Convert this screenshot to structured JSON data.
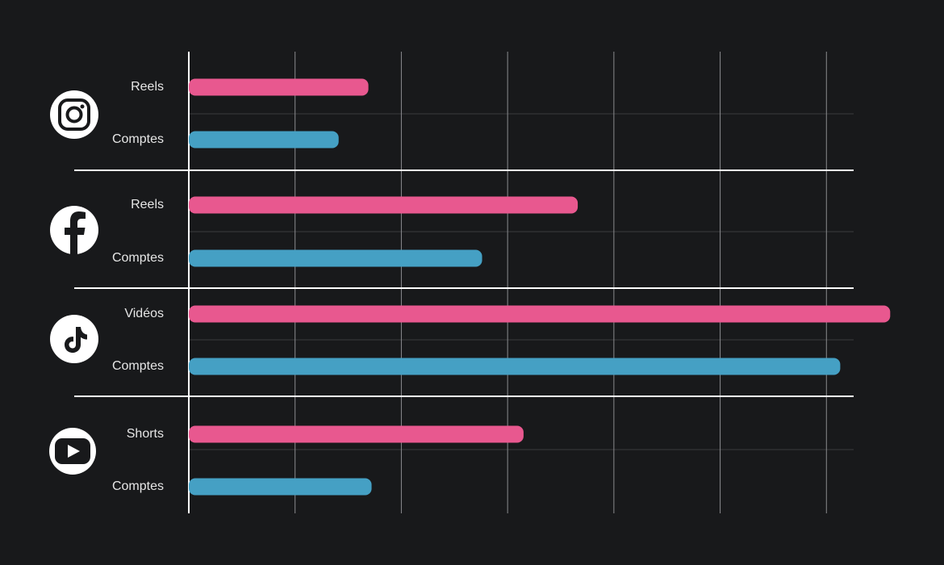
{
  "chart_data": {
    "type": "bar",
    "categories": [
      "Reels",
      "Comptes",
      "Reels",
      "Comptes",
      "Vidéos",
      "Comptes",
      "Shorts",
      "Comptes"
    ],
    "values": [
      1.69,
      1.41,
      3.66,
      2.76,
      6.6,
      6.13,
      3.15,
      1.72
    ],
    "colors": [
      "#e8588f",
      "#45a0c4",
      "#e8588f",
      "#45a0c4",
      "#e8588f",
      "#45a0c4",
      "#e8588f",
      "#45a0c4"
    ],
    "xlim": [
      0,
      7
    ],
    "xticks": [
      0,
      1,
      2,
      3,
      4,
      5,
      6
    ],
    "grid": true
  }
}
